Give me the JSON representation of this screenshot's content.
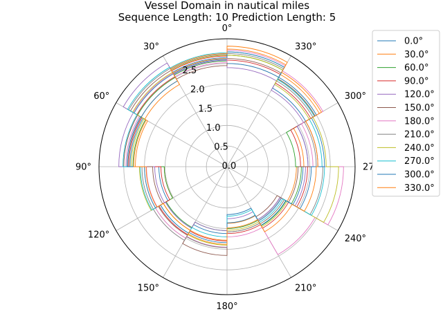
{
  "title_lines": [
    "Vessel Domain in nautical miles",
    "Sequence Length: 10 Prediction Length: 5"
  ],
  "chart_data": {
    "type": "polar-step",
    "title": "Vessel Domain in nautical miles\nSequence Length: 10 Prediction Length: 5",
    "theta_zero_location": "top",
    "theta_direction": "counterclockwise",
    "theta_ticks_deg": [
      0,
      30,
      60,
      90,
      120,
      150,
      180,
      210,
      240,
      270,
      300,
      330
    ],
    "theta_tick_labels": [
      "0°",
      "30°",
      "60°",
      "90°",
      "120°",
      "150°",
      "180°",
      "210°",
      "240°",
      "270°",
      "300°",
      "330°"
    ],
    "r_ticks": [
      0.0,
      0.5,
      1.0,
      1.5,
      2.0,
      2.5
    ],
    "r_tick_labels": [
      "0.0",
      "0.5",
      "1.0",
      "1.5",
      "2.0",
      "2.5"
    ],
    "rlim": [
      0,
      3.1
    ],
    "grid": true,
    "legend_position": "outside-right",
    "sector_edges_deg": [
      0,
      30,
      60,
      90,
      120,
      150,
      180,
      210,
      240,
      270,
      300,
      330,
      360
    ],
    "series": [
      {
        "name": "0.0°",
        "color": "#1f77b4",
        "values": [
          2.6,
          2.6,
          2.35,
          1.65,
          1.72,
          1.62,
          1.16,
          1.52,
          1.84,
          1.96,
          2.2,
          2.5
        ]
      },
      {
        "name": "30.0°",
        "color": "#ff7f0e",
        "values": [
          2.62,
          2.4,
          2.22,
          1.52,
          1.78,
          1.78,
          1.37,
          1.6,
          1.68,
          1.86,
          2.58,
          2.85
        ]
      },
      {
        "name": "60.0°",
        "color": "#2ca02c",
        "values": [
          2.56,
          2.5,
          2.28,
          1.52,
          1.7,
          1.55,
          1.5,
          1.65,
          1.8,
          1.66,
          2.46,
          2.7
        ]
      },
      {
        "name": "90.0°",
        "color": "#d62728",
        "values": [
          2.68,
          2.52,
          2.38,
          1.6,
          1.9,
          1.8,
          1.62,
          1.72,
          1.95,
          1.78,
          2.34,
          2.58
        ]
      },
      {
        "name": "120.0°",
        "color": "#9467bd",
        "values": [
          2.58,
          2.9,
          2.62,
          1.75,
          1.72,
          1.55,
          1.26,
          1.48,
          1.9,
          1.96,
          2.14,
          2.4
        ]
      },
      {
        "name": "150.0°",
        "color": "#8c564b",
        "values": [
          2.45,
          2.7,
          2.5,
          1.8,
          1.92,
          2.15,
          1.58,
          1.4,
          1.72,
          2.2,
          2.46,
          2.62
        ]
      },
      {
        "name": "180.0°",
        "color": "#e377c2",
        "values": [
          2.52,
          2.62,
          2.45,
          1.95,
          2.0,
          1.95,
          1.7,
          2.46,
          2.82,
          2.08,
          2.68,
          2.82
        ]
      },
      {
        "name": "210.0°",
        "color": "#7f7f7f",
        "values": [
          2.72,
          2.75,
          2.4,
          2.06,
          2.06,
          1.96,
          1.58,
          1.6,
          2.32,
          2.16,
          2.4,
          2.74
        ]
      },
      {
        "name": "240.0°",
        "color": "#bcbd22",
        "values": [
          2.7,
          2.64,
          2.32,
          2.12,
          1.78,
          1.9,
          1.54,
          1.68,
          2.7,
          2.4,
          2.3,
          2.7
        ]
      },
      {
        "name": "270.0°",
        "color": "#17becf",
        "values": [
          2.76,
          2.78,
          2.52,
          2.1,
          1.86,
          1.7,
          1.2,
          1.56,
          2.36,
          2.3,
          2.44,
          2.78
        ]
      },
      {
        "name": "300.0°",
        "color": "#1f77b4",
        "values": [
          2.64,
          2.4,
          2.42,
          2.0,
          1.86,
          1.84,
          1.36,
          1.64,
          2.04,
          2.36,
          2.5,
          2.78
        ]
      },
      {
        "name": "330.0°",
        "color": "#ff7f0e",
        "values": [
          2.74,
          2.3,
          2.26,
          1.96,
          1.78,
          1.88,
          1.48,
          1.82,
          2.16,
          2.2,
          2.64,
          2.92
        ]
      }
    ]
  }
}
